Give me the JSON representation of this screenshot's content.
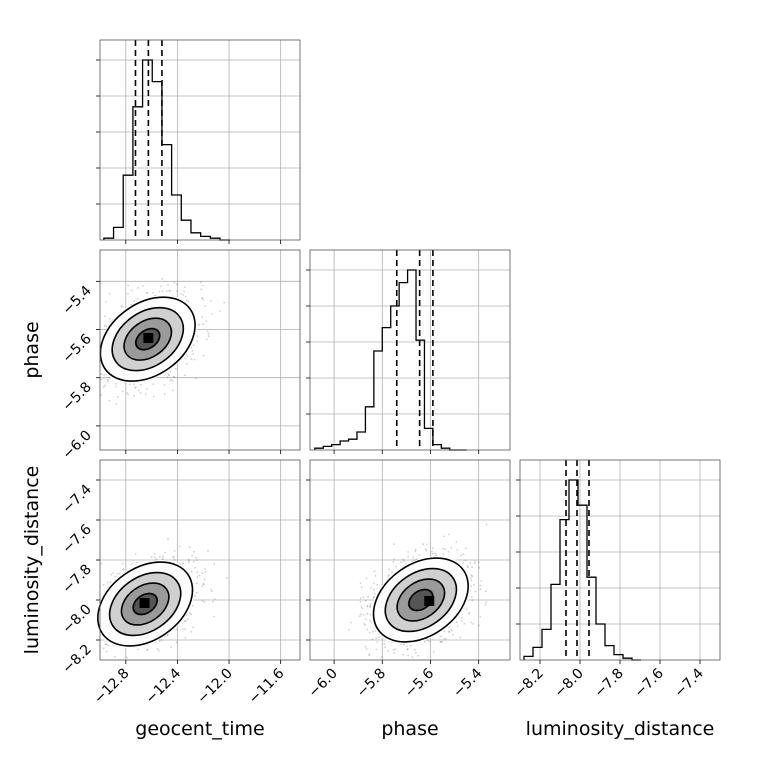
{
  "chart_data": {
    "type": "corner",
    "parameters": [
      "geocent_time",
      "phase",
      "luminosity_distance"
    ],
    "grid": true,
    "ranges": {
      "geocent_time": [
        -13.0,
        -11.45
      ],
      "phase": [
        -6.1,
        -5.27
      ],
      "luminosity_distance": [
        -8.3,
        -7.3
      ]
    },
    "ticks": {
      "geocent_time": {
        "values": [
          -12.8,
          -12.4,
          -12.0,
          -11.6
        ],
        "labels": [
          "−12.8",
          "−12.4",
          "−12.0",
          "−11.6"
        ]
      },
      "phase": {
        "values": [
          -6.0,
          -5.8,
          -5.6,
          -5.4
        ],
        "labels": [
          "−6.0",
          "−5.8",
          "−5.6",
          "−5.4"
        ]
      },
      "luminosity_distance": {
        "values": [
          -8.2,
          -8.0,
          -7.8,
          -7.6,
          -7.4
        ],
        "labels": [
          "−8.2",
          "−8.0",
          "−7.8",
          "−7.6",
          "−7.4"
        ]
      }
    },
    "histograms": [
      {
        "parameter": "geocent_time",
        "bins": [
          -12.97,
          -12.895,
          -12.82,
          -12.745,
          -12.67,
          -12.595,
          -12.52,
          -12.445,
          -12.37,
          -12.295,
          -12.22,
          -12.145,
          -12.07,
          -11.995
        ],
        "counts": [
          0.01,
          0.07,
          0.36,
          0.74,
          1.0,
          0.88,
          0.53,
          0.25,
          0.11,
          0.04,
          0.02,
          0.01,
          0.0
        ],
        "quantiles": [
          -12.725,
          -12.625,
          -12.52
        ]
      },
      {
        "parameter": "phase",
        "bins": [
          -6.08,
          -6.045,
          -6.01,
          -5.975,
          -5.94,
          -5.905,
          -5.87,
          -5.835,
          -5.8,
          -5.765,
          -5.73,
          -5.695,
          -5.66,
          -5.625,
          -5.59,
          -5.555,
          -5.52,
          -5.485,
          -5.45
        ],
        "counts": [
          0.01,
          0.02,
          0.03,
          0.05,
          0.06,
          0.1,
          0.24,
          0.55,
          0.68,
          0.8,
          0.93,
          1.0,
          0.61,
          0.12,
          0.03,
          0.01,
          0.0,
          0.0
        ],
        "quantiles": [
          -5.74,
          -5.645,
          -5.59
        ]
      },
      {
        "parameter": "luminosity_distance",
        "bins": [
          -8.28,
          -8.235,
          -8.19,
          -8.145,
          -8.1,
          -8.055,
          -8.01,
          -7.965,
          -7.92,
          -7.875,
          -7.83,
          -7.785,
          -7.74,
          -7.695
        ],
        "counts": [
          0.02,
          0.07,
          0.17,
          0.42,
          0.78,
          1.0,
          0.86,
          0.46,
          0.2,
          0.08,
          0.03,
          0.01,
          0.0
        ],
        "quantiles": [
          -8.07,
          -8.015,
          -7.955
        ]
      }
    ],
    "joint": [
      {
        "x": "geocent_time",
        "y": "phase",
        "center": [
          -12.63,
          -5.64
        ],
        "contour_sigma_levels": [
          0.5,
          1.0,
          1.5,
          2.0
        ],
        "peak_bin": [
          -12.625,
          -5.635
        ]
      },
      {
        "x": "geocent_time",
        "y": "luminosity_distance",
        "center": [
          -12.65,
          -8.02
        ],
        "contour_sigma_levels": [
          0.5,
          1.0,
          1.5,
          2.0
        ],
        "peak_bin": [
          -12.655,
          -8.015
        ]
      },
      {
        "x": "phase",
        "y": "luminosity_distance",
        "center": [
          -5.64,
          -8.0
        ],
        "contour_sigma_levels": [
          0.5,
          1.0,
          1.5,
          2.0
        ],
        "peak_bin": [
          -5.605,
          -8.005
        ]
      }
    ],
    "axis_labels": {
      "x": [
        "geocent_time",
        "phase",
        "luminosity_distance"
      ],
      "y": [
        "",
        "phase",
        "luminosity_distance"
      ]
    }
  }
}
